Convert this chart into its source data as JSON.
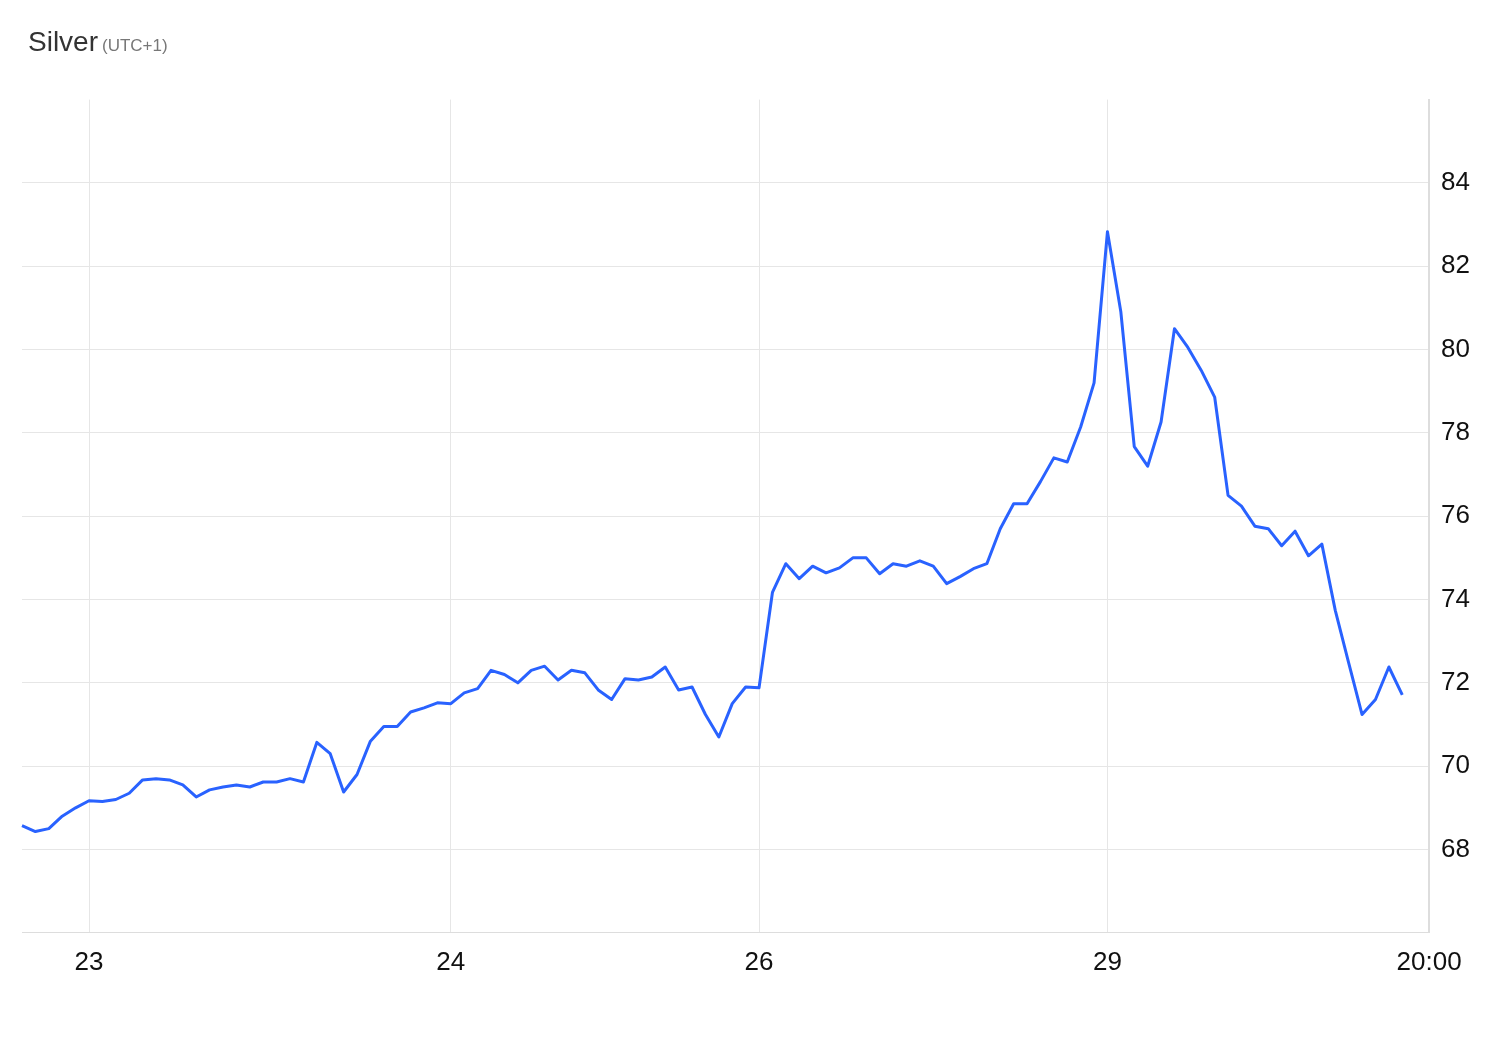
{
  "chart_data": {
    "type": "line",
    "title": "Silver",
    "subtitle": "(UTC+1)",
    "categories": [
      null,
      null,
      null,
      null,
      null,
      "23",
      null,
      null,
      null,
      null,
      null,
      null,
      null,
      null,
      null,
      null,
      null,
      null,
      null,
      null,
      null,
      null,
      null,
      null,
      null,
      null,
      null,
      null,
      null,
      null,
      null,
      null,
      "24",
      null,
      null,
      null,
      null,
      null,
      null,
      null,
      null,
      null,
      null,
      null,
      null,
      null,
      null,
      null,
      null,
      null,
      null,
      null,
      null,
      null,
      null,
      "26",
      null,
      null,
      null,
      null,
      null,
      null,
      null,
      null,
      null,
      null,
      null,
      null,
      null,
      null,
      null,
      null,
      null,
      null,
      null,
      null,
      null,
      null,
      null,
      null,
      null,
      "29",
      null,
      null,
      null,
      null,
      null,
      null,
      null,
      null,
      null,
      null,
      null,
      null,
      null,
      null,
      null,
      null,
      null,
      null,
      null,
      null,
      null,
      null,
      null,
      "20:00"
    ],
    "series": [
      {
        "color": "#2962ff",
        "values": [
          68.57,
          68.43,
          68.5,
          68.8,
          69.0,
          69.17,
          69.15,
          69.2,
          69.35,
          69.67,
          69.7,
          69.67,
          69.55,
          69.26,
          69.43,
          69.5,
          69.55,
          69.5,
          69.62,
          69.62,
          69.7,
          69.62,
          70.57,
          70.3,
          69.38,
          69.8,
          70.6,
          70.95,
          70.95,
          71.3,
          71.4,
          71.52,
          71.5,
          71.76,
          71.86,
          72.3,
          72.2,
          72.0,
          72.3,
          72.4,
          72.07,
          72.3,
          72.24,
          71.83,
          71.6,
          72.1,
          72.07,
          72.14,
          72.38,
          71.83,
          71.9,
          71.24,
          70.7,
          71.5,
          71.9,
          71.88,
          74.17,
          74.86,
          74.5,
          74.8,
          74.64,
          74.76,
          75.0,
          75.0,
          74.62,
          74.86,
          74.8,
          74.93,
          74.8,
          74.38,
          74.55,
          74.74,
          74.86,
          75.7,
          76.3,
          76.3,
          76.83,
          77.4,
          77.3,
          78.14,
          79.2,
          82.83,
          80.9,
          77.67,
          77.2,
          78.26,
          80.5,
          80.05,
          79.5,
          78.86,
          76.5,
          76.24,
          75.76,
          75.7,
          75.29,
          75.64,
          75.05,
          75.33,
          73.74,
          72.48,
          71.24,
          71.6,
          72.38,
          71.71,
          null,
          null
        ]
      }
    ],
    "ylim": [
      66,
      86
    ],
    "yticks": [
      68,
      70,
      72,
      74,
      76,
      78,
      80,
      82,
      84
    ],
    "grid": true,
    "legend": false,
    "marker": "none",
    "line_style": "solid"
  }
}
